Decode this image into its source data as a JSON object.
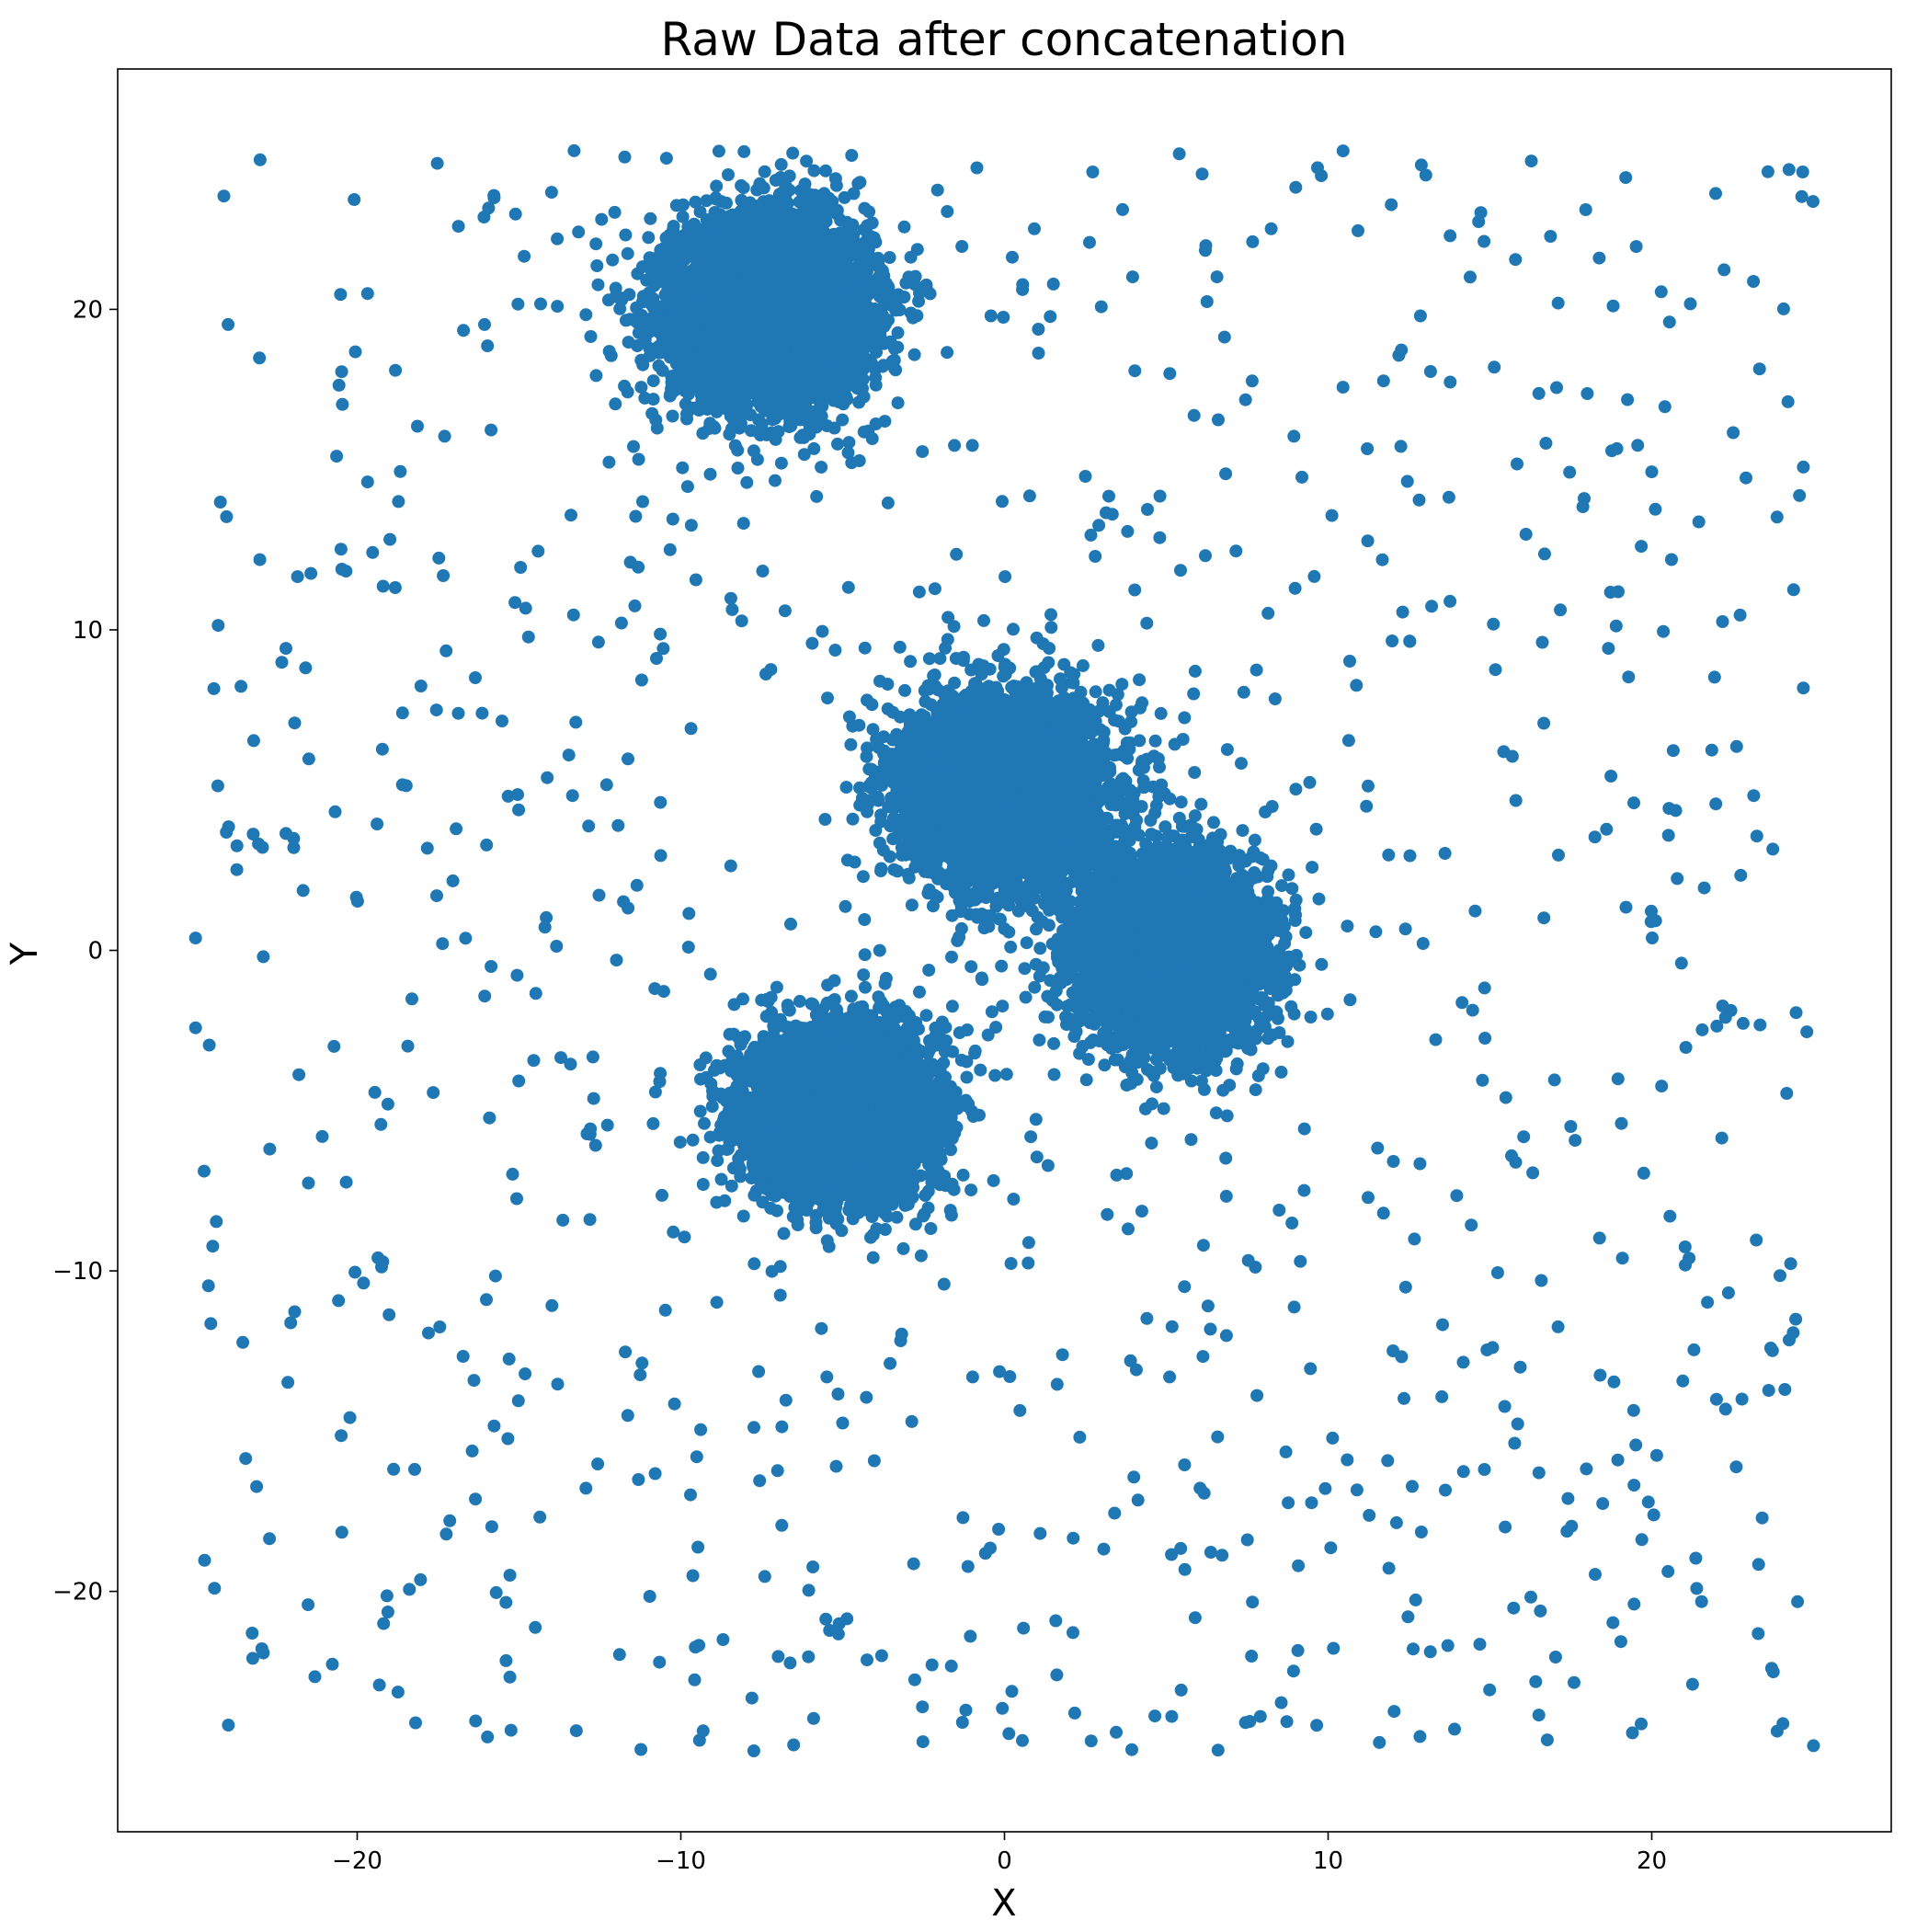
{
  "chart_data": {
    "type": "scatter",
    "title": "Raw Data after concatenation",
    "xlabel": "X",
    "ylabel": "Y",
    "xlim": [
      -27.4,
      27.4
    ],
    "ylim": [
      -27.5,
      27.5
    ],
    "xticks": [
      -20,
      -10,
      0,
      10,
      20
    ],
    "yticks": [
      -20,
      -10,
      0,
      10,
      20
    ],
    "xtick_labels": [
      "−20",
      "−10",
      "0",
      "10",
      "20"
    ],
    "ytick_labels": [
      "−20",
      "−10",
      "0",
      "10",
      "20"
    ],
    "grid": false,
    "legend": "none",
    "marker_color": "#1f77b4",
    "series": [
      {
        "clusters": [
          {
            "center": [
              -7.2,
              20.0
            ],
            "spread_x": 1.5,
            "spread_y": 1.4,
            "count": 5000
          },
          {
            "center": [
              0.0,
              5.0
            ],
            "spread_x": 1.5,
            "spread_y": 1.4,
            "count": 5000
          },
          {
            "center": [
              5.1,
              0.0
            ],
            "spread_x": 1.4,
            "spread_y": 1.4,
            "count": 5000
          },
          {
            "center": [
              -5.1,
              -5.0
            ],
            "spread_x": 1.4,
            "spread_y": 1.3,
            "count": 5000
          }
        ],
        "uniform_background": {
          "x_range": [
            -25,
            25
          ],
          "y_range": [
            -25,
            25
          ],
          "count": 1000
        }
      }
    ]
  }
}
